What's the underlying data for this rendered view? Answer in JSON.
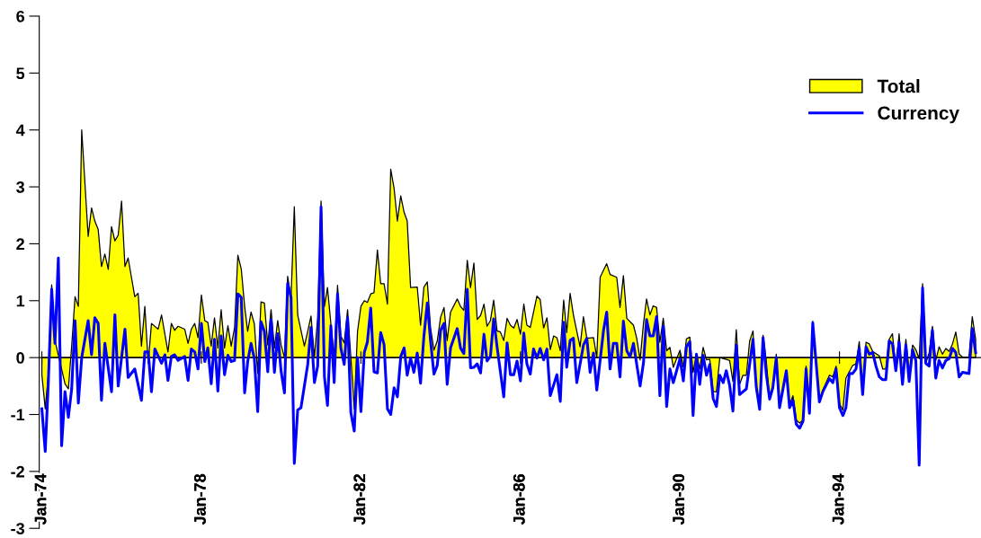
{
  "chart_data": {
    "type": "area",
    "xlim": [
      "1973-12-08",
      "1997-07-20"
    ],
    "xticks": [
      {
        "value": "1974-01",
        "label": "Jan-74"
      },
      {
        "value": "1978-01",
        "label": "Jan-78"
      },
      {
        "value": "1982-01",
        "label": "Jan-82"
      },
      {
        "value": "1986-01",
        "label": "Jan-86"
      },
      {
        "value": "1990-01",
        "label": "Jan-90"
      },
      {
        "value": "1994-01",
        "label": "Jan-94"
      }
    ],
    "ylim": [
      -3,
      6
    ],
    "yticks": [
      -3,
      -2,
      -1,
      0,
      1,
      2,
      3,
      4,
      5,
      6
    ],
    "legend": "top right",
    "series": [
      {
        "name": "Total",
        "color": "#ffff00",
        "x": [
          "1974-01",
          "1974-02",
          "1974-03",
          "1974-04",
          "1974-05",
          "1974-08",
          "1974-09",
          "1974-10",
          "1974-11",
          "1974-12",
          "1975-01",
          "1975-03",
          "1975-04",
          "1975-05",
          "1975-06",
          "1975-07",
          "1975-08",
          "1975-09",
          "1975-10",
          "1975-11",
          "1975-12",
          "1976-01",
          "1976-02",
          "1976-03",
          "1976-05",
          "1976-06",
          "1976-07",
          "1976-08",
          "1976-09",
          "1976-10",
          "1976-12",
          "1977-01",
          "1977-03",
          "1977-04",
          "1977-05",
          "1977-06",
          "1977-08",
          "1977-09",
          "1977-10",
          "1977-11",
          "1977-12",
          "1978-01",
          "1978-02",
          "1978-03",
          "1978-04",
          "1978-05",
          "1978-06",
          "1978-07",
          "1978-08",
          "1978-09",
          "1978-10",
          "1978-11",
          "1978-12",
          "1979-01",
          "1979-02",
          "1979-03",
          "1979-04",
          "1979-05",
          "1979-06",
          "1979-07",
          "1979-08",
          "1979-09",
          "1979-10",
          "1979-11",
          "1979-12",
          "1980-01",
          "1980-02",
          "1980-03",
          "1980-04",
          "1980-05",
          "1980-06",
          "1980-08",
          "1980-09",
          "1980-10",
          "1980-11",
          "1980-12",
          "1981-01",
          "1981-02",
          "1981-03",
          "1981-04",
          "1981-05",
          "1981-06",
          "1981-07",
          "1981-08",
          "1981-09",
          "1981-10",
          "1981-11",
          "1981-12",
          "1982-01",
          "1982-02",
          "1982-03",
          "1982-04",
          "1982-05",
          "1982-06",
          "1982-07",
          "1982-08",
          "1982-09",
          "1982-10",
          "1982-11",
          "1982-12",
          "1983-01",
          "1983-02",
          "1983-03",
          "1983-04",
          "1983-06",
          "1983-07",
          "1983-08",
          "1983-09",
          "1983-10",
          "1983-11",
          "1983-12",
          "1984-01",
          "1984-02",
          "1984-03",
          "1984-04",
          "1984-06",
          "1984-07",
          "1984-08",
          "1984-09",
          "1984-10",
          "1984-11",
          "1984-12",
          "1985-01",
          "1985-02",
          "1985-03",
          "1985-04",
          "1985-05",
          "1985-06",
          "1985-07",
          "1985-08",
          "1985-09",
          "1985-10",
          "1985-11",
          "1985-12",
          "1986-01",
          "1986-02",
          "1986-03",
          "1986-04",
          "1986-06",
          "1986-07",
          "1986-08",
          "1986-09",
          "1986-10",
          "1986-11",
          "1986-12",
          "1987-01",
          "1987-02",
          "1987-03",
          "1987-04",
          "1987-05",
          "1987-07",
          "1987-08",
          "1987-09",
          "1987-11",
          "1987-12",
          "1988-01",
          "1988-03",
          "1988-04",
          "1988-06",
          "1988-07",
          "1988-08",
          "1988-09",
          "1988-11",
          "1988-12",
          "1989-01",
          "1989-02",
          "1989-03",
          "1989-04",
          "1989-05",
          "1989-06",
          "1989-07",
          "1989-08",
          "1989-09",
          "1989-10",
          "1989-11",
          "1989-12",
          "1990-01",
          "1990-02",
          "1990-03",
          "1990-04",
          "1990-05",
          "1990-06",
          "1990-07",
          "1990-08",
          "1990-09",
          "1990-10",
          "1990-11",
          "1990-12",
          "1991-01",
          "1991-03",
          "1991-04",
          "1991-05",
          "1991-06",
          "1991-07",
          "1991-08",
          "1991-09",
          "1991-10",
          "1991-11",
          "1991-12",
          "1992-01",
          "1992-02",
          "1992-03",
          "1992-04",
          "1992-05",
          "1992-06",
          "1992-07",
          "1992-09",
          "1992-10",
          "1992-11",
          "1992-12",
          "1993-01",
          "1993-02",
          "1993-03",
          "1993-04",
          "1993-05",
          "1993-07",
          "1993-08",
          "1993-10",
          "1993-11",
          "1993-12",
          "1994-01",
          "1994-02",
          "1994-03",
          "1994-05",
          "1994-06",
          "1994-07",
          "1994-08",
          "1994-09",
          "1994-10",
          "1994-11",
          "1995-01",
          "1995-02",
          "1995-03",
          "1995-04",
          "1995-05",
          "1995-06",
          "1995-07",
          "1995-08",
          "1995-09",
          "1995-10",
          "1995-11",
          "1995-12",
          "1996-01",
          "1996-02",
          "1996-03",
          "1996-04",
          "1996-05",
          "1996-06",
          "1996-07",
          "1996-08",
          "1996-09",
          "1996-10",
          "1996-11",
          "1996-12",
          "1997-01",
          "1997-02",
          "1997-04",
          "1997-05",
          "1997-06"
        ],
        "values": [
          -0.3,
          -0.9,
          -0.3,
          1.28,
          0.3,
          -0.46,
          -0.55,
          0.2,
          1.07,
          0.9,
          4.0,
          2.13,
          2.63,
          2.4,
          2.25,
          1.6,
          1.82,
          1.55,
          2.3,
          2.05,
          2.15,
          2.75,
          1.6,
          1.75,
          1.07,
          1.13,
          0.2,
          0.9,
          -0.1,
          0.6,
          0.5,
          0.75,
          0.1,
          0.6,
          0.48,
          0.55,
          0.5,
          0.25,
          0.5,
          0.6,
          0.35,
          1.1,
          0.65,
          0.62,
          0.2,
          0.7,
          0.17,
          0.84,
          0.17,
          0.56,
          0.2,
          0.53,
          1.8,
          1.56,
          0.9,
          0.46,
          0.8,
          0.59,
          -0.28,
          0.98,
          0.96,
          0.22,
          0.84,
          0.17,
          0.65,
          0.22,
          0,
          1.43,
          1.04,
          2.65,
          0.75,
          0.2,
          0.46,
          0.73,
          0,
          0.7,
          2.75,
          0.9,
          1.23,
          0.59,
          0,
          1.27,
          0.38,
          0.26,
          0.84,
          0,
          -0.9,
          0.46,
          0.9,
          1.0,
          0.97,
          1.12,
          1.14,
          1.89,
          1.3,
          1.3,
          0.94,
          3.31,
          2.97,
          2.4,
          2.84,
          2.55,
          2.4,
          1.23,
          1.24,
          0.57,
          1.24,
          1.33,
          0.52,
          0.13,
          0.29,
          0.71,
          0.88,
          0.3,
          0.8,
          1.03,
          0.9,
          0.83,
          1.71,
          1.23,
          1.66,
          0.67,
          0.74,
          0.94,
          0.55,
          0.65,
          1.01,
          0.47,
          0.45,
          0.3,
          0.69,
          0.57,
          0.52,
          0.67,
          0.41,
          0.94,
          0.57,
          0.53,
          1.08,
          1.02,
          0.52,
          0.7,
          0.14,
          0.38,
          0.35,
          0.12,
          1.01,
          0.44,
          1.13,
          0.75,
          0.19,
          0.72,
          0.34,
          0.35,
          0,
          1.41,
          1.65,
          1.46,
          1.41,
          0.88,
          1.44,
          0.69,
          0.57,
          0.34,
          -0.04,
          0.6,
          1.03,
          0.75,
          0.91,
          0.88,
          0.27,
          0.69,
          0.12,
          0.18,
          -0.17,
          -0.02,
          0.13,
          -0.17,
          0.33,
          0.36,
          -0.26,
          0.06,
          -0.2,
          0.18,
          -0.04,
          -0.03,
          -0.6,
          -0.6,
          0,
          -0.03,
          -0.05,
          -0.42,
          0.49,
          -0.47,
          -0.31,
          -0.31,
          0.29,
          0.47,
          -0.57,
          -0.88,
          0.39,
          -0.05,
          -0.73,
          -0.57,
          0.06,
          -0.83,
          -0.26,
          -0.83,
          -0.67,
          -1.1,
          -1.15,
          -1.1,
          -0.15,
          -0.94,
          0.64,
          -0.78,
          -0.57,
          -0.31,
          -0.34,
          -0.15,
          -0.81,
          -0.92,
          -0.36,
          -0.14,
          -0.11,
          0.28,
          -0.57,
          0.27,
          0.24,
          0.11,
          0.03,
          -0.2,
          -0.2,
          0.32,
          0.42,
          -0.2,
          0.42,
          -0.47,
          0.32,
          -0.31,
          0.22,
          0.14,
          -0.02,
          1.3,
          -0.1,
          0.08,
          0.55,
          -0.05,
          0.19,
          0.06,
          0.16,
          0.11,
          0.24,
          0.45,
          0.06,
          0.01,
          0.01,
          0.72,
          0.32
        ]
      },
      {
        "name": "Currency",
        "type": "line",
        "color": "#0000ff",
        "x": [
          "1974-01",
          "1974-02",
          "1974-03",
          "1974-04",
          "1974-05",
          "1974-06",
          "1974-07",
          "1974-08",
          "1974-09",
          "1974-10",
          "1974-11",
          "1974-12",
          "1975-01",
          "1975-03",
          "1975-04",
          "1975-05",
          "1975-06",
          "1975-07",
          "1975-08",
          "1975-10",
          "1975-11",
          "1975-12",
          "1976-02",
          "1976-03",
          "1976-05",
          "1976-07",
          "1976-08",
          "1976-09",
          "1976-10",
          "1976-11",
          "1977-01",
          "1977-02",
          "1977-03",
          "1977-04",
          "1977-05",
          "1977-06",
          "1977-08",
          "1977-09",
          "1977-10",
          "1977-11",
          "1977-12",
          "1978-01",
          "1978-02",
          "1978-03",
          "1978-04",
          "1978-05",
          "1978-06",
          "1978-07",
          "1978-08",
          "1978-09",
          "1978-10",
          "1978-11",
          "1978-12",
          "1979-01",
          "1979-02",
          "1979-03",
          "1979-04",
          "1979-05",
          "1979-06",
          "1979-07",
          "1979-08",
          "1979-09",
          "1979-10",
          "1979-11",
          "1979-12",
          "1980-01",
          "1980-02",
          "1980-03",
          "1980-04",
          "1980-05",
          "1980-06",
          "1980-07",
          "1980-09",
          "1980-10",
          "1980-11",
          "1980-12",
          "1981-01",
          "1981-02",
          "1981-03",
          "1981-04",
          "1981-05",
          "1981-06",
          "1981-07",
          "1981-08",
          "1981-09",
          "1981-10",
          "1981-11",
          "1981-12",
          "1982-01",
          "1982-02",
          "1982-03",
          "1982-04",
          "1982-05",
          "1982-06",
          "1982-07",
          "1982-08",
          "1982-09",
          "1982-10",
          "1982-11",
          "1982-12",
          "1983-01",
          "1983-02",
          "1983-03",
          "1983-04",
          "1983-05",
          "1983-06",
          "1983-07",
          "1983-08",
          "1983-09",
          "1983-10",
          "1983-11",
          "1983-12",
          "1984-01",
          "1984-02",
          "1984-03",
          "1984-04",
          "1984-06",
          "1984-07",
          "1984-08",
          "1984-09",
          "1984-10",
          "1984-11",
          "1984-12",
          "1985-01",
          "1985-02",
          "1985-03",
          "1985-04",
          "1985-05",
          "1985-06",
          "1985-08",
          "1985-09",
          "1985-10",
          "1985-11",
          "1985-12",
          "1986-01",
          "1986-02",
          "1986-03",
          "1986-04",
          "1986-05",
          "1986-06",
          "1986-07",
          "1986-08",
          "1986-09",
          "1986-10",
          "1986-12",
          "1987-01",
          "1987-02",
          "1987-03",
          "1987-04",
          "1987-05",
          "1987-06",
          "1987-08",
          "1987-09",
          "1987-10",
          "1987-11",
          "1987-12",
          "1988-02",
          "1988-03",
          "1988-04",
          "1988-05",
          "1988-06",
          "1988-07",
          "1988-08",
          "1988-09",
          "1988-10",
          "1988-11",
          "1989-01",
          "1989-02",
          "1989-03",
          "1989-04",
          "1989-05",
          "1989-06",
          "1989-07",
          "1989-08",
          "1989-09",
          "1989-10",
          "1989-11",
          "1990-01",
          "1990-02",
          "1990-03",
          "1990-04",
          "1990-05",
          "1990-06",
          "1990-07",
          "1990-08",
          "1990-09",
          "1990-10",
          "1990-11",
          "1990-12",
          "1991-01",
          "1991-02",
          "1991-03",
          "1991-04",
          "1991-05",
          "1991-06",
          "1991-07",
          "1991-09",
          "1991-11",
          "1991-12",
          "1992-01",
          "1992-02",
          "1992-03",
          "1992-04",
          "1992-05",
          "1992-06",
          "1992-07",
          "1992-09",
          "1992-10",
          "1992-11",
          "1992-12",
          "1993-01",
          "1993-02",
          "1993-03",
          "1993-04",
          "1993-05",
          "1993-07",
          "1993-08",
          "1993-10",
          "1993-11",
          "1993-12",
          "1994-01",
          "1994-02",
          "1994-03",
          "1994-04",
          "1994-05",
          "1994-06",
          "1994-07",
          "1994-08",
          "1994-09",
          "1994-10",
          "1994-11",
          "1994-12",
          "1995-01",
          "1995-02",
          "1995-03",
          "1995-04",
          "1995-05",
          "1995-06",
          "1995-07",
          "1995-08",
          "1995-09",
          "1995-10",
          "1995-11",
          "1995-12",
          "1996-01",
          "1996-02",
          "1996-03",
          "1996-04",
          "1996-05",
          "1996-06",
          "1996-07",
          "1996-08",
          "1996-09",
          "1996-10",
          "1996-11",
          "1996-12",
          "1997-01",
          "1997-02",
          "1997-04",
          "1997-05",
          "1997-06"
        ],
        "values": [
          -0.9,
          -1.65,
          -0.45,
          1.2,
          0.25,
          1.75,
          -1.55,
          -0.6,
          -1.05,
          -0.55,
          0.65,
          -0.8,
          0,
          0.65,
          0.05,
          0.7,
          0.6,
          -0.75,
          0.25,
          -0.6,
          0.75,
          -0.5,
          0.5,
          -0.35,
          -0.2,
          -0.75,
          0.1,
          0.1,
          -0.6,
          0.15,
          -0.1,
          0.05,
          -0.4,
          0.02,
          0.05,
          -0.05,
          0.02,
          -0.4,
          0.15,
          0.1,
          -0.2,
          0.6,
          -0.07,
          0.17,
          -0.46,
          0.32,
          -0.59,
          0.38,
          -0.3,
          0.04,
          -0.07,
          -0.05,
          1.12,
          1.06,
          -0.62,
          -0.07,
          0.25,
          -0.02,
          -0.95,
          0.63,
          0.46,
          -0.25,
          0.67,
          -0.26,
          0.42,
          -0.24,
          -0.62,
          1.3,
          1.06,
          -1.86,
          -0.92,
          -0.88,
          -0.12,
          0.53,
          -0.44,
          -0.15,
          2.65,
          -0.34,
          -0.84,
          0.56,
          -0.44,
          1.12,
          0.17,
          -0.12,
          0.7,
          -0.97,
          -1.29,
          0,
          -0.95,
          0.09,
          0.27,
          0.87,
          -0.25,
          -0.27,
          0.44,
          0.23,
          -0.9,
          -1.0,
          -0.53,
          -0.69,
          0.02,
          0.17,
          -0.31,
          -0.01,
          -0.26,
          0.08,
          -0.45,
          0.38,
          0.96,
          0.29,
          -0.29,
          -0.14,
          0.48,
          0.6,
          -0.47,
          0.17,
          0.51,
          0.17,
          0.07,
          1.2,
          -0.18,
          -0.17,
          -0.11,
          -0.27,
          0.41,
          -0.06,
          0.02,
          0.68,
          0.19,
          -0.69,
          0.26,
          -0.3,
          -0.3,
          -0.06,
          -0.41,
          0.43,
          -0.11,
          -0.29,
          0.15,
          -0.01,
          0.16,
          -0.04,
          0.15,
          -0.67,
          -0.3,
          -0.77,
          0.62,
          -0.17,
          0.3,
          0.34,
          -0.44,
          0.22,
          0.34,
          -0.26,
          0.08,
          -0.57,
          0.48,
          0.8,
          -0.2,
          0.25,
          0.25,
          -0.34,
          0.64,
          0.12,
          0.01,
          0.25,
          -0.5,
          -0.09,
          0.67,
          0.38,
          0.38,
          0.72,
          -0.67,
          0.55,
          -0.86,
          -0.2,
          -0.44,
          -0.02,
          -0.41,
          0.19,
          0.28,
          -1.02,
          0.06,
          -0.47,
          0.04,
          -0.31,
          -0.12,
          -0.72,
          -0.86,
          -0.31,
          -0.44,
          -0.23,
          -0.49,
          -0.94,
          0.22,
          -0.65,
          -0.55,
          0.32,
          -0.52,
          -0.91,
          0.35,
          -0.28,
          -0.73,
          -0.52,
          0,
          -0.88,
          -0.23,
          -0.88,
          -0.75,
          -1.17,
          -1.24,
          -1.12,
          -0.2,
          -0.98,
          0.61,
          -0.78,
          -0.6,
          -0.37,
          -0.44,
          -0.2,
          -0.88,
          -1.02,
          -0.88,
          -0.28,
          -0.28,
          -0.2,
          0.16,
          -0.65,
          0.19,
          0.06,
          0.09,
          -0.15,
          -0.34,
          -0.39,
          -0.39,
          0.29,
          0.24,
          -0.23,
          0.27,
          -0.47,
          0.22,
          -0.42,
          0.14,
          -0.05,
          -1.89,
          1.23,
          -0.1,
          -0.15,
          0.48,
          -0.36,
          -0.05,
          -0.18,
          -0.05,
          -0.02,
          0.16,
          0.09,
          -0.34,
          -0.26,
          -0.28,
          0.51,
          0.09
        ]
      }
    ]
  }
}
